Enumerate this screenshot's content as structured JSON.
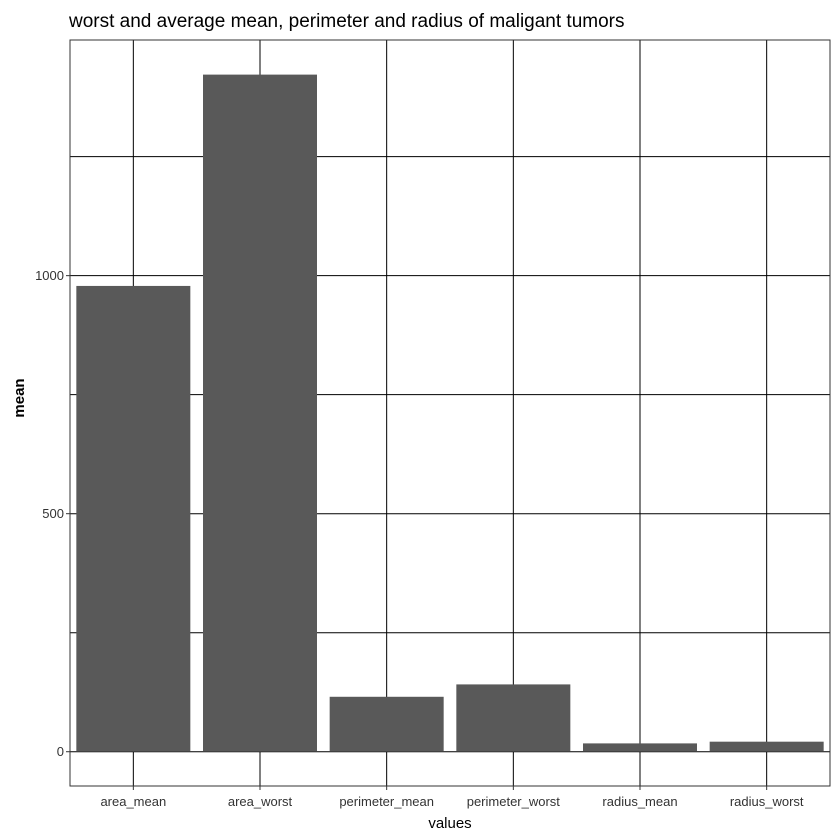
{
  "chart_data": {
    "type": "bar",
    "title": "worst and average mean, perimeter and radius of maligant tumors",
    "xlabel": "values",
    "ylabel": "mean",
    "categories": [
      "area_mean",
      "area_worst",
      "perimeter_mean",
      "perimeter_worst",
      "radius_mean",
      "radius_worst"
    ],
    "values": [
      978.4,
      1422.3,
      115.4,
      141.4,
      17.5,
      21.1
    ],
    "ylim": [
      -72,
      1495
    ],
    "yticks": [
      0,
      500,
      1000
    ],
    "yticklabels": [
      "0",
      "500",
      "1000"
    ],
    "minor_gridlines": [
      250,
      750,
      1250
    ],
    "grid": true,
    "legend": "none",
    "colors": {
      "bar": "#595959",
      "grid": "#000000",
      "panel_border": "#333333",
      "background": "#ffffff"
    }
  }
}
